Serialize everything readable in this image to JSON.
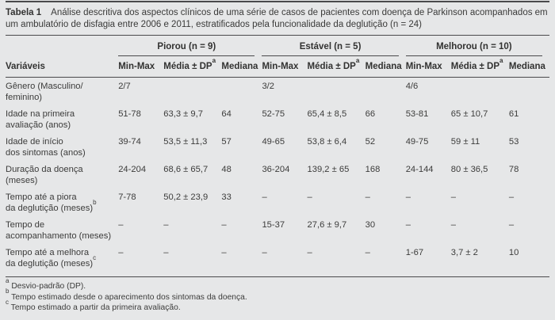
{
  "page": {
    "title_label": "Tabela 1",
    "title_text": "Análise descritiva dos aspectos clínicos de uma série de casos de pacientes com doença de Parkinson acompanhados em um ambulatório de disfagia entre 2006 e 2011, estratificados pela funcionalidade da deglutição (n = 24)"
  },
  "table": {
    "variables_header": "Variáveis",
    "groups": [
      "Piorou (n = 9)",
      "Estável (n = 5)",
      "Melhorou (n = 10)"
    ],
    "subheaders": [
      {
        "text": "Min-Max",
        "sup": ""
      },
      {
        "text": "Média ± DP",
        "sup": "a"
      },
      {
        "text": "Mediana",
        "sup": ""
      }
    ],
    "rows": [
      {
        "label_lines": [
          "Gênero (Masculino/",
          "feminino)"
        ],
        "sup": "",
        "cells": [
          "2/7",
          "",
          "",
          "3/2",
          "",
          "",
          "4/6",
          "",
          ""
        ]
      },
      {
        "label_lines": [
          "Idade na primeira",
          "avaliação (anos)"
        ],
        "sup": "",
        "cells": [
          "51-78",
          "63,3 ± 9,7",
          "64",
          "52-75",
          "65,4 ± 8,5",
          "66",
          "53-81",
          "65 ± 10,7",
          "61"
        ]
      },
      {
        "label_lines": [
          "Idade de início",
          "dos sintomas (anos)"
        ],
        "sup": "",
        "cells": [
          "39-74",
          "53,5 ± 11,3",
          "57",
          "49-65",
          "53,8 ± 6,4",
          "52",
          "49-75",
          "59 ± 11",
          "53"
        ]
      },
      {
        "label_lines": [
          "Duração da doença",
          "(meses)"
        ],
        "sup": "",
        "cells": [
          "24-204",
          "68,6 ± 65,7",
          "48",
          "36-204",
          "139,2 ± 65",
          "168",
          "24-144",
          "80 ± 36,5",
          "78"
        ]
      },
      {
        "label_lines": [
          "Tempo até a piora",
          "da deglutição (meses)"
        ],
        "sup": "b",
        "cells": [
          "7-78",
          "50,2 ± 23,9",
          "33",
          "–",
          "–",
          "–",
          "–",
          "–",
          "–"
        ]
      },
      {
        "label_lines": [
          "Tempo de",
          "acompanhamento (meses)"
        ],
        "sup": "",
        "cells": [
          "–",
          "–",
          "–",
          "15-37",
          "27,6 ± 9,7",
          "30",
          "–",
          "–",
          "–"
        ]
      },
      {
        "label_lines": [
          "Tempo até a melhora",
          "da deglutição (meses)"
        ],
        "sup": "c",
        "cells": [
          "–",
          "–",
          "–",
          "–",
          "–",
          "–",
          "1-67",
          "3,7 ± 2",
          "10"
        ]
      }
    ],
    "footnotes": [
      {
        "marker": "a",
        "text": "Desvio-padrão (DP)."
      },
      {
        "marker": "b",
        "text": "Tempo estimado desde o aparecimento dos sintomas da doença."
      },
      {
        "marker": "c",
        "text": "Tempo estimado a partir da primeira avaliação."
      }
    ]
  }
}
